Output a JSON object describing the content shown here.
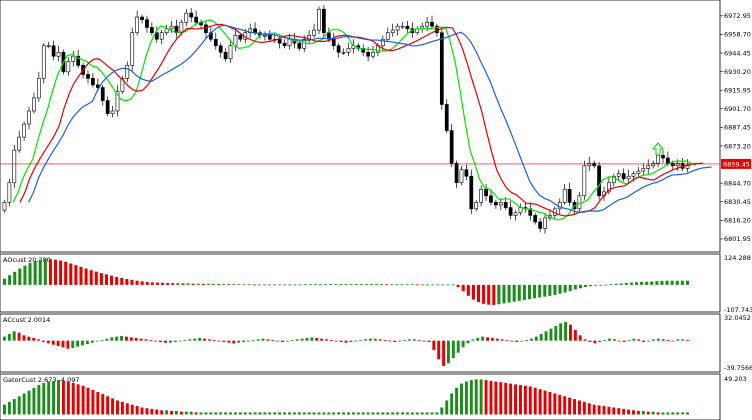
{
  "chart_data": [
    {
      "type": "candlestick",
      "title": "",
      "ylim": [
        6795,
        6982
      ],
      "y_ticks": [
        "6972.95",
        "6958.70",
        "6944.45",
        "6930.20",
        "6915.95",
        "6901.70",
        "6887.45",
        "6873.20",
        "6844.70",
        "6830.45",
        "6816.20",
        "6801.95"
      ],
      "current_price": "6859.45",
      "current_value": 6859.45,
      "colors": {
        "up": "#ffffff",
        "down": "#000000",
        "ma_fast": "#00e600",
        "ma_mid": "#e60000",
        "ma_slow": "#1a5fe6",
        "price_line": "#e60000",
        "arrow": "#00d000"
      },
      "candles_count": 140,
      "series": [
        {
          "name": "close",
          "values": [
            6830,
            6845,
            6870,
            6880,
            6890,
            6900,
            6910,
            6925,
            6950,
            6950,
            6942,
            6945,
            6930,
            6938,
            6942,
            6935,
            6928,
            6925,
            6920,
            6918,
            6908,
            6898,
            6900,
            6915,
            6925,
            6935,
            6960,
            6972,
            6970,
            6964,
            6960,
            6955,
            6960,
            6963,
            6965,
            6960,
            6968,
            6975,
            6972,
            6968,
            6966,
            6960,
            6955,
            6950,
            6945,
            6940,
            6950,
            6958,
            6955,
            6960,
            6963,
            6960,
            6958,
            6958,
            6955,
            6955,
            6952,
            6950,
            6955,
            6952,
            6948,
            6955,
            6958,
            6962,
            6978,
            6960,
            6955,
            6950,
            6945,
            6945,
            6948,
            6950,
            6948,
            6945,
            6942,
            6945,
            6950,
            6955,
            6960,
            6962,
            6965,
            6965,
            6963,
            6960,
            6963,
            6965,
            6968,
            6965,
            6960,
            6905,
            6885,
            6860,
            6845,
            6855,
            6850,
            6825,
            6830,
            6840,
            6835,
            6830,
            6828,
            6830,
            6826,
            6820,
            6822,
            6826,
            6825,
            6820,
            6815,
            6810,
            6818,
            6820,
            6825,
            6830,
            6840,
            6830,
            6825,
            6835,
            6858,
            6860,
            6858,
            6835,
            6838,
            6845,
            6850,
            6852,
            6848,
            6850,
            6852,
            6854,
            6856,
            6858,
            6860,
            6866,
            6864,
            6860,
            6858,
            6860,
            6856,
            6858
          ]
        }
      ]
    },
    {
      "type": "bar",
      "title": "AOcust 20.280",
      "y_ticks": [
        "124.288",
        "-107.743"
      ],
      "ylim": [
        -110,
        128
      ],
      "colors": {
        "up": "#1c8c1c",
        "down": "#e60000"
      },
      "values": [
        30,
        46,
        62,
        78,
        92,
        104,
        114,
        120,
        124,
        123,
        120,
        116,
        110,
        102,
        94,
        86,
        78,
        70,
        63,
        56,
        50,
        44,
        38,
        33,
        28,
        24,
        20,
        17,
        14,
        12,
        11,
        10,
        9,
        8,
        8,
        7,
        7,
        6,
        6,
        5,
        5,
        5,
        4,
        4,
        3,
        3,
        3,
        3,
        3,
        2,
        2,
        2,
        2,
        2,
        2,
        2,
        2,
        2,
        2,
        3,
        3,
        3,
        3,
        3,
        4,
        4,
        4,
        4,
        4,
        4,
        4,
        4,
        4,
        4,
        4,
        3,
        3,
        3,
        3,
        3,
        3,
        2,
        2,
        2,
        2,
        2,
        2,
        2,
        2,
        -10,
        -30,
        -52,
        -70,
        -82,
        -90,
        -94,
        -95,
        -92,
        -88,
        -84,
        -80,
        -76,
        -72,
        -68,
        -64,
        -60,
        -56,
        -52,
        -48,
        -42,
        -36,
        -30,
        -22,
        -16,
        -10,
        -6,
        -4,
        -2,
        1,
        3,
        5,
        7,
        9,
        11,
        13,
        14,
        15,
        16,
        18,
        19,
        20,
        20,
        20,
        20,
        20
      ]
    },
    {
      "type": "bar",
      "title": "ACcust 2.0014",
      "y_ticks": [
        "32.0452",
        "-39.7566"
      ],
      "ylim": [
        -41,
        34
      ],
      "colors": {
        "up": "#1c8c1c",
        "down": "#e60000"
      },
      "values": [
        6,
        10,
        14,
        12,
        8,
        6,
        4,
        2,
        -2,
        -4,
        -6,
        -8,
        -10,
        -12,
        -11,
        -9,
        -7,
        -5,
        -3,
        -1,
        1,
        3,
        5,
        6,
        7,
        6,
        5,
        4,
        3,
        2,
        1,
        -1,
        -2,
        -3,
        -3,
        -2,
        -1,
        1,
        2,
        3,
        4,
        3,
        2,
        1,
        -1,
        -2,
        -3,
        -4,
        -3,
        -2,
        -1,
        1,
        2,
        3,
        2,
        1,
        -1,
        -2,
        -1,
        1,
        2,
        3,
        4,
        5,
        4,
        3,
        2,
        1,
        -1,
        -2,
        -3,
        -2,
        -1,
        1,
        2,
        3,
        3,
        2,
        1,
        -1,
        -2,
        -1,
        1,
        2,
        2,
        1,
        -1,
        -2,
        -14,
        -28,
        -38,
        -34,
        -26,
        -18,
        -10,
        -4,
        2,
        4,
        6,
        5,
        4,
        3,
        2,
        1,
        -1,
        -2,
        -1,
        1,
        3,
        6,
        10,
        14,
        18,
        22,
        26,
        28,
        24,
        16,
        8,
        2,
        -2,
        -4,
        -2,
        1,
        3,
        2,
        -1,
        -2,
        1,
        3,
        2,
        -2,
        -1,
        2,
        3,
        2,
        1,
        -1,
        2,
        2,
        1
      ]
    },
    {
      "type": "bar",
      "title": "GatorCust 2.673 -4.097",
      "y_ticks": [
        "49.203"
      ],
      "ylim": [
        -5,
        52
      ],
      "colors": {
        "up": "#1c8c1c",
        "down": "#e60000"
      },
      "values": [
        14,
        18,
        22,
        26,
        30,
        34,
        38,
        42,
        45,
        47,
        48,
        49,
        48,
        47,
        45,
        43,
        41,
        38,
        35,
        32,
        29,
        26,
        23,
        20,
        18,
        16,
        14,
        12,
        10,
        9,
        8,
        7,
        6,
        6,
        5,
        5,
        4,
        4,
        4,
        3,
        3,
        3,
        3,
        3,
        3,
        3,
        3,
        3,
        3,
        3,
        3,
        3,
        3,
        3,
        3,
        3,
        3,
        3,
        3,
        3,
        3,
        3,
        3,
        3,
        3,
        3,
        3,
        3,
        3,
        3,
        3,
        3,
        3,
        3,
        3,
        3,
        3,
        3,
        3,
        3,
        3,
        3,
        3,
        3,
        3,
        3,
        3,
        3,
        3,
        10,
        20,
        30,
        38,
        44,
        47,
        49,
        50,
        50,
        49,
        48,
        47,
        46,
        45,
        44,
        43,
        42,
        41,
        40,
        38,
        36,
        34,
        32,
        30,
        28,
        26,
        24,
        22,
        20,
        18,
        16,
        14,
        13,
        12,
        11,
        10,
        9,
        8,
        7,
        6,
        5,
        5,
        4,
        4,
        3,
        3,
        3,
        3,
        3,
        3,
        3
      ]
    }
  ]
}
